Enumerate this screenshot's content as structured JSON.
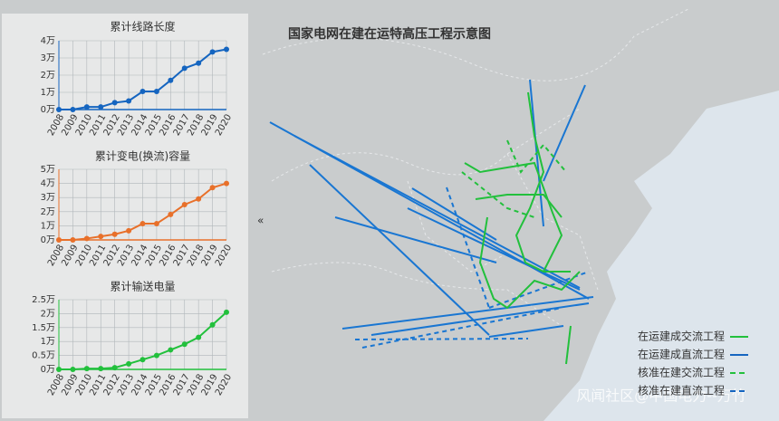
{
  "chart_data": [
    {
      "type": "line",
      "title": "累计线路长度",
      "color": "#1565c0",
      "categories": [
        "2008",
        "2009",
        "2010",
        "2011",
        "2012",
        "2013",
        "2014",
        "2015",
        "2016",
        "2017",
        "2018",
        "2019",
        "2020"
      ],
      "values": [
        0,
        0,
        0.15,
        0.15,
        0.4,
        0.5,
        1.05,
        1.05,
        1.7,
        2.4,
        2.7,
        3.35,
        3.5
      ],
      "ylim": [
        0,
        4
      ],
      "yticks": [
        {
          "value": 0,
          "label": "0万"
        },
        {
          "value": 1,
          "label": "1万"
        },
        {
          "value": 2,
          "label": "2万"
        },
        {
          "value": 3,
          "label": "3万"
        },
        {
          "value": 4,
          "label": "4万"
        }
      ]
    },
    {
      "type": "line",
      "title": "累计变电(换流)容量",
      "color": "#e8702a",
      "categories": [
        "2008",
        "2009",
        "2010",
        "2011",
        "2012",
        "2013",
        "2014",
        "2015",
        "2016",
        "2017",
        "2018",
        "2019",
        "2020"
      ],
      "values": [
        0,
        0,
        0.1,
        0.25,
        0.4,
        0.65,
        1.15,
        1.15,
        1.8,
        2.5,
        2.9,
        3.7,
        4.0
      ],
      "ylim": [
        0,
        5
      ],
      "yticks": [
        {
          "value": 0,
          "label": "0万"
        },
        {
          "value": 1,
          "label": "1万"
        },
        {
          "value": 2,
          "label": "2万"
        },
        {
          "value": 3,
          "label": "3万"
        },
        {
          "value": 4,
          "label": "4万"
        },
        {
          "value": 5,
          "label": "5万"
        }
      ]
    },
    {
      "type": "line",
      "title": "累计输送电量",
      "color": "#22c03c",
      "categories": [
        "2008",
        "2009",
        "2010",
        "2011",
        "2012",
        "2013",
        "2014",
        "2015",
        "2016",
        "2017",
        "2018",
        "2019",
        "2020"
      ],
      "values": [
        0,
        0,
        0.03,
        0.03,
        0.06,
        0.2,
        0.35,
        0.5,
        0.7,
        0.9,
        1.15,
        1.6,
        2.05
      ],
      "ylim": [
        0,
        2.5
      ],
      "yticks": [
        {
          "value": 0,
          "label": "0万"
        },
        {
          "value": 0.5,
          "label": "0.5万"
        },
        {
          "value": 1,
          "label": "1万"
        },
        {
          "value": 1.5,
          "label": "1.5万"
        },
        {
          "value": 2,
          "label": "2万"
        },
        {
          "value": 2.5,
          "label": "2.5万"
        }
      ]
    }
  ],
  "map": {
    "title": "国家电网在建在运特高压工程示意图",
    "legend": [
      {
        "name": "在运建成交流工程",
        "color": "#22c03c",
        "style": "solid"
      },
      {
        "name": "在运建成直流工程",
        "color": "#1565c0",
        "style": "solid"
      },
      {
        "name": "核准在建交流工程",
        "color": "#22c03c",
        "style": "dashed"
      },
      {
        "name": "核准在建直流工程",
        "color": "#1565c0",
        "style": "dashed"
      }
    ]
  },
  "watermark": "风闻社区@中国电力--万竹"
}
